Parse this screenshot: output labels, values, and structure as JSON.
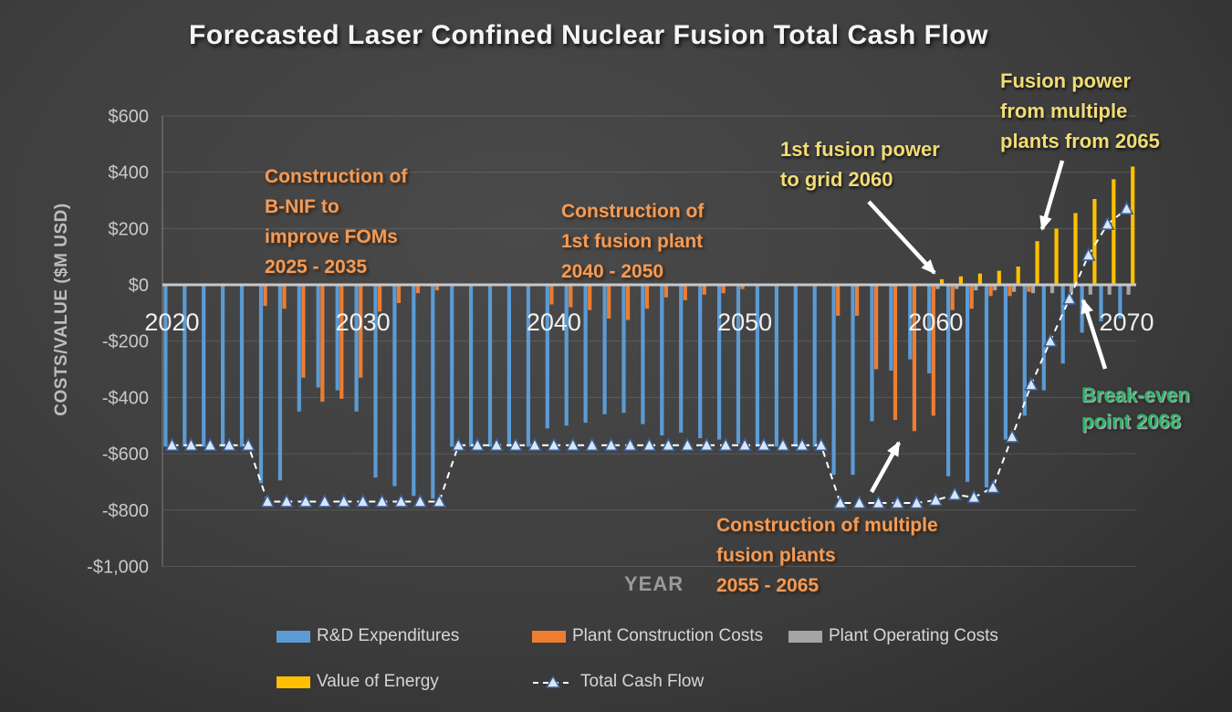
{
  "title": "Forecasted Laser Confined Nuclear Fusion Total Cash Flow",
  "colors": {
    "rd_expenditures": "#5B9BD5",
    "plant_construction": "#ED7D31",
    "plant_operating": "#A5A5A5",
    "value_of_energy": "#FFC000",
    "total_cash_flow_line": "#FFFFFF",
    "marker_fill": "#D8E6F6",
    "marker_stroke": "#3A5E96",
    "annotation_orange": "#F09C5B",
    "annotation_yellow": "#F2DC74",
    "annotation_green": "#2FB56B",
    "axis_text": "#C9C9C9",
    "year_tick_text": "#F0F0F0"
  },
  "chart_data": {
    "type": "bar",
    "title": "Forecasted Laser Confined Nuclear Fusion Total Cash Flow",
    "x": [
      2020,
      2021,
      2022,
      2023,
      2024,
      2025,
      2026,
      2027,
      2028,
      2029,
      2030,
      2031,
      2032,
      2033,
      2034,
      2035,
      2036,
      2037,
      2038,
      2039,
      2040,
      2041,
      2042,
      2043,
      2044,
      2045,
      2046,
      2047,
      2048,
      2049,
      2050,
      2051,
      2052,
      2053,
      2054,
      2055,
      2056,
      2057,
      2058,
      2059,
      2060,
      2061,
      2062,
      2063,
      2064,
      2065,
      2066,
      2067,
      2068,
      2069,
      2070
    ],
    "series": [
      {
        "name": "R&D Expenditures",
        "color": "#5B9BD5",
        "values": [
          -570,
          -570,
          -570,
          -570,
          -570,
          -700,
          -690,
          -445,
          -360,
          -370,
          -445,
          -680,
          -710,
          -745,
          -755,
          -570,
          -570,
          -570,
          -570,
          -570,
          -505,
          -495,
          -485,
          -455,
          -450,
          -490,
          -530,
          -520,
          -540,
          -545,
          -560,
          -570,
          -570,
          -570,
          -570,
          -670,
          -670,
          -480,
          -300,
          -260,
          -310,
          -675,
          -695,
          -715,
          -545,
          -460,
          -370,
          -275,
          -165,
          -125,
          -115
        ]
      },
      {
        "name": "Plant Construction Costs",
        "color": "#ED7D31",
        "values": [
          0,
          0,
          0,
          0,
          0,
          -70,
          -80,
          -325,
          -410,
          -400,
          -325,
          -90,
          -60,
          -25,
          -15,
          0,
          0,
          0,
          0,
          0,
          -65,
          -75,
          -85,
          -115,
          -120,
          -80,
          -40,
          -50,
          -30,
          -25,
          -10,
          0,
          0,
          0,
          0,
          -105,
          -105,
          -295,
          -475,
          -515,
          -460,
          -85,
          -80,
          -35,
          -35,
          -20,
          0,
          0,
          0,
          0,
          0
        ]
      },
      {
        "name": "Plant Operating Costs",
        "color": "#A5A5A5",
        "values": [
          0,
          0,
          0,
          0,
          0,
          0,
          0,
          0,
          0,
          0,
          0,
          0,
          0,
          0,
          0,
          0,
          0,
          0,
          0,
          0,
          0,
          0,
          0,
          0,
          0,
          0,
          0,
          0,
          0,
          0,
          0,
          0,
          0,
          0,
          0,
          0,
          0,
          0,
          0,
          0,
          -10,
          -10,
          -15,
          -15,
          -20,
          -25,
          -25,
          -25,
          -30,
          -30,
          -30
        ]
      },
      {
        "name": "Value of Energy",
        "color": "#FFC000",
        "values": [
          0,
          0,
          0,
          0,
          0,
          0,
          0,
          0,
          0,
          0,
          0,
          0,
          0,
          0,
          0,
          0,
          0,
          0,
          0,
          0,
          0,
          0,
          0,
          0,
          0,
          0,
          0,
          0,
          0,
          0,
          0,
          0,
          0,
          0,
          0,
          0,
          0,
          0,
          0,
          0,
          15,
          25,
          35,
          45,
          60,
          150,
          195,
          250,
          300,
          370,
          415
        ]
      }
    ],
    "line_series": {
      "name": "Total Cash Flow",
      "values": [
        -570,
        -570,
        -570,
        -570,
        -570,
        -770,
        -770,
        -770,
        -770,
        -770,
        -770,
        -770,
        -770,
        -770,
        -770,
        -570,
        -570,
        -570,
        -570,
        -570,
        -570,
        -570,
        -570,
        -570,
        -570,
        -570,
        -570,
        -570,
        -570,
        -570,
        -570,
        -570,
        -570,
        -570,
        -570,
        -775,
        -775,
        -775,
        -775,
        -775,
        -765,
        -745,
        -755,
        -720,
        -540,
        -355,
        -200,
        -50,
        105,
        215,
        270
      ]
    },
    "y_axis": {
      "title": "COSTS/VALUE ($M USD)",
      "min": -1000,
      "max": 600,
      "tick_step": 200,
      "tick_values": [
        600,
        400,
        200,
        0,
        -200,
        -400,
        -600,
        -800,
        -1000
      ],
      "tick_labels": [
        "$600",
        "$400",
        "$200",
        "$0",
        "-$200",
        "-$400",
        "-$600",
        "-$800",
        "-$1,000"
      ]
    },
    "x_axis": {
      "title": "YEAR",
      "tick_years": [
        2020,
        2030,
        2040,
        2050,
        2060,
        2070
      ],
      "tick_labels": [
        "2020",
        "2030",
        "2040",
        "2050",
        "2060",
        "2070"
      ]
    },
    "grid": true,
    "legend_position": "bottom"
  },
  "annotations": {
    "bnif": {
      "lines": [
        "Construction of",
        "B-NIF to",
        "improve FOMs",
        "2025 - 2035"
      ]
    },
    "plant1": {
      "lines": [
        "Construction of",
        "1st fusion plant",
        "2040 - 2050"
      ]
    },
    "grid2060": {
      "lines": [
        "1st fusion power",
        "to grid 2060"
      ]
    },
    "multi2065": {
      "lines": [
        "Fusion power",
        "from multiple",
        "plants from 2065"
      ]
    },
    "breakeven": {
      "lines": [
        "Break-even",
        "point 2068"
      ]
    },
    "multiplants": {
      "lines": [
        "Construction of multiple",
        "fusion plants",
        "2055 - 2065"
      ]
    }
  }
}
